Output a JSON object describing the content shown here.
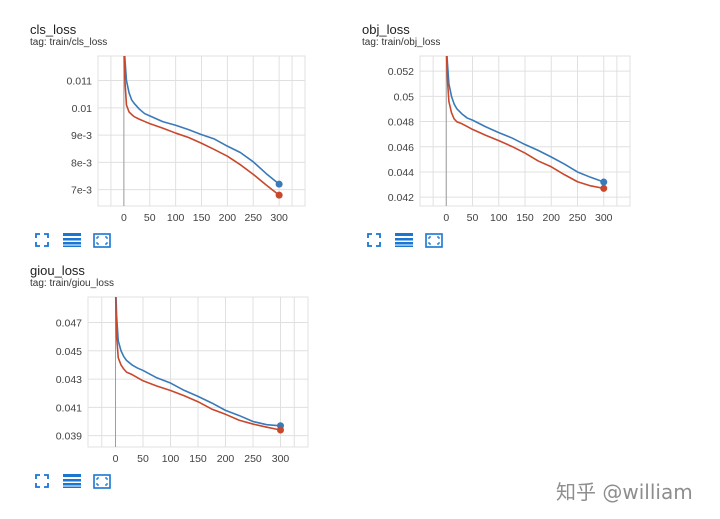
{
  "charts": [
    {
      "id": "cls",
      "title": "cls_loss",
      "tag": "tag: train/cls_loss"
    },
    {
      "id": "obj",
      "title": "obj_loss",
      "tag": "tag: train/obj_loss"
    },
    {
      "id": "giou",
      "title": "giou_loss",
      "tag": "tag: train/giou_loss"
    }
  ],
  "watermark": "知乎 @william",
  "colors": {
    "series_blue": "#3a7ab8",
    "series_red": "#c8482c",
    "grid": "#e0e0e0",
    "icon": "#1976d2"
  },
  "icons": [
    "expand-icon",
    "data-table-icon",
    "fit-domain-icon"
  ],
  "chart_data": [
    {
      "type": "line",
      "title": "cls_loss",
      "xlim": [
        -50,
        350
      ],
      "ylim": [
        0.0064,
        0.0119
      ],
      "x_ticks": [
        0,
        50,
        100,
        150,
        200,
        250,
        300
      ],
      "x_tick_labels": [
        "0",
        "50",
        "100",
        "150",
        "200",
        "250",
        "300"
      ],
      "y_ticks": [
        0.007,
        0.008,
        0.009,
        0.01,
        0.011
      ],
      "y_tick_labels": [
        "7e-3",
        "8e-3",
        "9e-3",
        "0.01",
        "0.011"
      ],
      "grid": true,
      "series": [
        {
          "color": "#3a7ab8",
          "x": [
            0,
            2,
            5,
            10,
            15,
            20,
            30,
            40,
            50,
            75,
            100,
            125,
            150,
            175,
            200,
            225,
            250,
            275,
            300
          ],
          "y": [
            0.0125,
            0.0118,
            0.011,
            0.01055,
            0.0103,
            0.01015,
            0.00995,
            0.0098,
            0.0097,
            0.0095,
            0.00935,
            0.0092,
            0.00903,
            0.00885,
            0.0086,
            0.00835,
            0.00802,
            0.0076,
            0.0072
          ]
        },
        {
          "color": "#c8482c",
          "x": [
            0,
            2,
            5,
            10,
            15,
            20,
            30,
            40,
            50,
            75,
            100,
            125,
            150,
            175,
            200,
            225,
            250,
            275,
            300
          ],
          "y": [
            0.0122,
            0.011,
            0.0101,
            0.00985,
            0.00975,
            0.00968,
            0.00957,
            0.0095,
            0.00943,
            0.00925,
            0.00908,
            0.0089,
            0.0087,
            0.00848,
            0.00822,
            0.00792,
            0.00755,
            0.00717,
            0.0068
          ]
        }
      ]
    },
    {
      "type": "line",
      "title": "obj_loss",
      "xlim": [
        -50,
        350
      ],
      "ylim": [
        0.0413,
        0.0532
      ],
      "x_ticks": [
        0,
        50,
        100,
        150,
        200,
        250,
        300
      ],
      "x_tick_labels": [
        "0",
        "50",
        "100",
        "150",
        "200",
        "250",
        "300"
      ],
      "y_ticks": [
        0.042,
        0.044,
        0.046,
        0.048,
        0.05,
        0.052
      ],
      "y_tick_labels": [
        "0.042",
        "0.044",
        "0.046",
        "0.048",
        "0.05",
        "0.052"
      ],
      "grid": true,
      "series": [
        {
          "color": "#3a7ab8",
          "x": [
            0,
            2,
            5,
            10,
            15,
            20,
            30,
            40,
            50,
            75,
            100,
            125,
            150,
            175,
            200,
            225,
            250,
            275,
            300
          ],
          "y": [
            0.0545,
            0.0528,
            0.051,
            0.05,
            0.0494,
            0.049,
            0.0486,
            0.0483,
            0.0481,
            0.0476,
            0.0471,
            0.0467,
            0.0462,
            0.0457,
            0.0452,
            0.0446,
            0.044,
            0.0436,
            0.0432
          ]
        },
        {
          "color": "#c8482c",
          "x": [
            0,
            2,
            5,
            10,
            15,
            20,
            30,
            40,
            50,
            75,
            100,
            125,
            150,
            175,
            200,
            225,
            250,
            275,
            300
          ],
          "y": [
            0.054,
            0.0515,
            0.0496,
            0.0487,
            0.0482,
            0.048,
            0.0478,
            0.0476,
            0.0474,
            0.0469,
            0.0465,
            0.046,
            0.0455,
            0.0449,
            0.0444,
            0.0438,
            0.0432,
            0.0429,
            0.0427
          ]
        }
      ]
    },
    {
      "type": "line",
      "title": "giou_loss",
      "xlim": [
        -50,
        350
      ],
      "ylim": [
        0.0382,
        0.0488
      ],
      "x_ticks": [
        0,
        50,
        100,
        150,
        200,
        250,
        300
      ],
      "x_tick_labels": [
        "0",
        "50",
        "100",
        "150",
        "200",
        "250",
        "300"
      ],
      "y_ticks": [
        0.039,
        0.041,
        0.043,
        0.045,
        0.047
      ],
      "y_tick_labels": [
        "0.039",
        "0.041",
        "0.043",
        "0.045",
        "0.047"
      ],
      "grid": true,
      "series": [
        {
          "color": "#3a7ab8",
          "x": [
            0,
            2,
            5,
            10,
            15,
            20,
            30,
            40,
            50,
            75,
            100,
            125,
            150,
            175,
            200,
            225,
            250,
            275,
            300
          ],
          "y": [
            0.05,
            0.0475,
            0.0457,
            0.045,
            0.0446,
            0.0443,
            0.044,
            0.0438,
            0.0436,
            0.0431,
            0.0427,
            0.0422,
            0.0418,
            0.0413,
            0.0408,
            0.0404,
            0.04,
            0.0398,
            0.0397
          ]
        },
        {
          "color": "#c8482c",
          "x": [
            0,
            2,
            5,
            10,
            15,
            20,
            30,
            40,
            50,
            75,
            100,
            125,
            150,
            175,
            200,
            225,
            250,
            275,
            300
          ],
          "y": [
            0.0495,
            0.046,
            0.0445,
            0.044,
            0.0437,
            0.0435,
            0.0433,
            0.0431,
            0.0429,
            0.0425,
            0.0422,
            0.0418,
            0.0414,
            0.0409,
            0.0405,
            0.0401,
            0.0398,
            0.0396,
            0.0394
          ]
        }
      ]
    }
  ]
}
